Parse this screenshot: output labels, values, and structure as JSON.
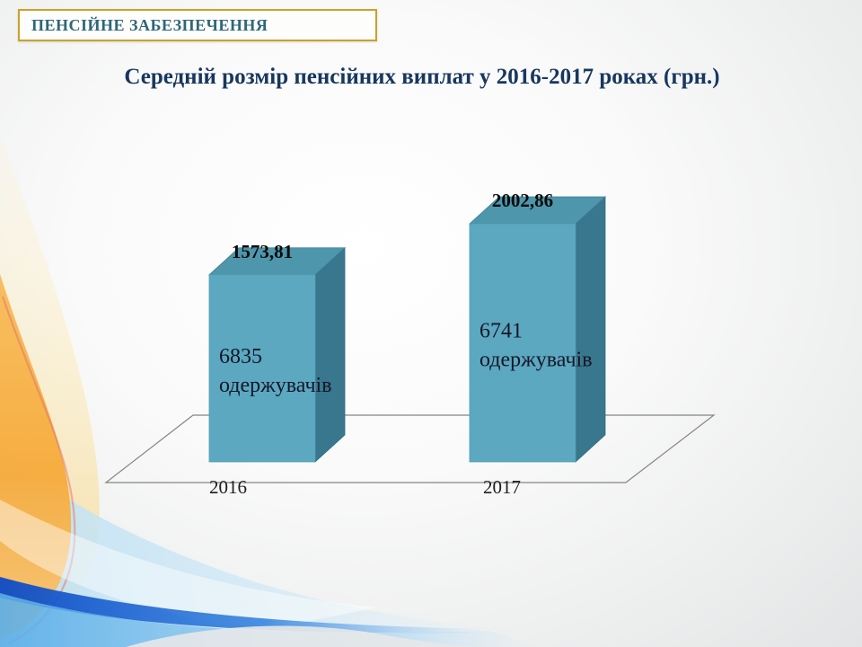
{
  "header": {
    "badge": "ПЕНСІЙНЕ ЗАБЕЗПЕЧЕННЯ"
  },
  "chart_data": {
    "type": "bar",
    "style": "3d-column",
    "title": "Середній розмір пенсійних виплат у 2016-2017 роках (грн.)",
    "categories": [
      "2016",
      "2017"
    ],
    "values": [
      1573.81,
      2002.86
    ],
    "legend": "none",
    "gridlines": false,
    "bars": [
      {
        "category": "2016",
        "value": 1573.81,
        "value_label": "1573,81",
        "annotation_line1": "6835",
        "annotation_line2": "одержувачів"
      },
      {
        "category": "2017",
        "value": 2002.86,
        "value_label": "2002,86",
        "annotation_line1": "6741",
        "annotation_line2": "одержувачів"
      }
    ],
    "colors": {
      "bar_front": "#5ba8c0",
      "bar_top": "#4e96ac",
      "bar_side": "#38778d",
      "floor_outline": "#858585",
      "title_text": "#17375e",
      "badge_text": "#2e6778",
      "badge_border": "#caa22d"
    }
  }
}
